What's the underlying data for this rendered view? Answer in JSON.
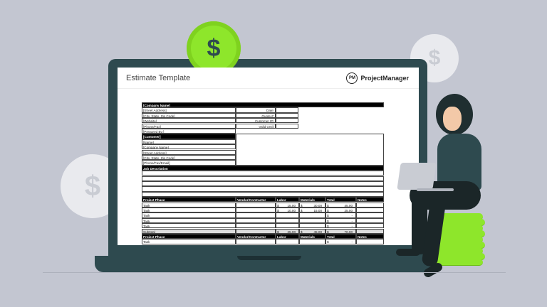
{
  "window": {
    "title": "Estimate Template",
    "brand": "ProjectManager",
    "brand_mark": "PM"
  },
  "colors": {
    "background": "#c3c6d1",
    "laptop": "#2e4a4f",
    "coin_green": "#8ee62b"
  },
  "icons": {
    "coin": "dollar-coin-icon",
    "symbol": "$"
  },
  "company": {
    "header": "[Company Name]",
    "fields": [
      "[Street Address]",
      "[City, State, Zip Code]",
      "[Website]",
      "[Phone/Fax]",
      "[Prepared By:]"
    ]
  },
  "quote_fields": [
    "Date:",
    "Quote #:",
    "Customer ID:",
    "Valid Until:"
  ],
  "customer": {
    "header": "[Customer]",
    "fields": [
      "[Name]",
      "[Company Name]",
      "[Street Address]",
      "[City, State, Zip Code]",
      "[Phone/Fax/Email]"
    ]
  },
  "job_description": "Job Description",
  "columns": [
    "Project Phase",
    "Vendor/Contractor",
    "Labor",
    "Materials",
    "Total",
    "Notes"
  ],
  "rows": [
    {
      "phase": "Task",
      "labor": "15.00",
      "materials": "30.00",
      "total": "45.00"
    },
    {
      "phase": "Task",
      "labor": "10.00",
      "materials": "15.00",
      "total": "25.00"
    },
    {
      "phase": "Task",
      "labor": "",
      "materials": "",
      "total": "-"
    },
    {
      "phase": "Task",
      "labor": "",
      "materials": "",
      "total": "-"
    },
    {
      "phase": "Task",
      "labor": "",
      "materials": "",
      "total": "-"
    }
  ],
  "subtotal": {
    "phase": "Subtotal",
    "labor": "25.00",
    "materials": "45.00",
    "total": "70.00"
  },
  "rows2": [
    {
      "phase": "Task",
      "labor": "",
      "materials": "",
      "total": "-"
    }
  ],
  "currency": "$"
}
